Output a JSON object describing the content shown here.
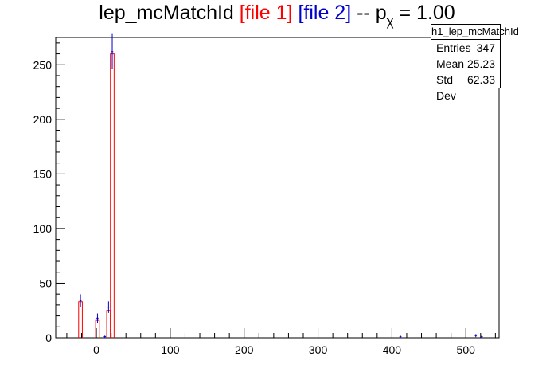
{
  "title": {
    "main": "lep_mcMatchId",
    "file1": "[file 1]",
    "file2": "[file 2]",
    "sep": "--",
    "p": "p",
    "chi": "χ",
    "pvalue": "= 1.00"
  },
  "stats": {
    "name": "h1_lep_mcMatchId",
    "rows": [
      {
        "label": "Entries",
        "value": "347"
      },
      {
        "label": "Mean",
        "value": "25.23"
      },
      {
        "label": "Std Dev",
        "value": "62.33"
      }
    ]
  },
  "colors": {
    "file1": "#ff0000",
    "file2": "#0000cc",
    "axis": "#000000"
  },
  "chart_data": {
    "type": "bar",
    "xlim": [
      -55,
      545
    ],
    "ylim": [
      0,
      275
    ],
    "xticks": [
      0,
      100,
      200,
      300,
      400,
      500
    ],
    "yticks": [
      0,
      50,
      100,
      150,
      200,
      250
    ],
    "bin_width": 5,
    "series": [
      {
        "name": "[file 1]",
        "bins": [
          {
            "x": -24,
            "y": 33
          },
          {
            "x": -1,
            "y": 16
          },
          {
            "x": 14,
            "y": 25
          },
          {
            "x": 19,
            "y": 260
          }
        ]
      },
      {
        "name": "[file 2]",
        "bins": [
          {
            "x": -24,
            "y": 34
          },
          {
            "x": -1,
            "y": 18
          },
          {
            "x": 9,
            "y": 1
          },
          {
            "x": 14,
            "y": 28
          },
          {
            "x": 19,
            "y": 262
          },
          {
            "x": 409,
            "y": 1
          },
          {
            "x": 511,
            "y": 2
          },
          {
            "x": 519,
            "y": 1
          }
        ]
      }
    ]
  }
}
